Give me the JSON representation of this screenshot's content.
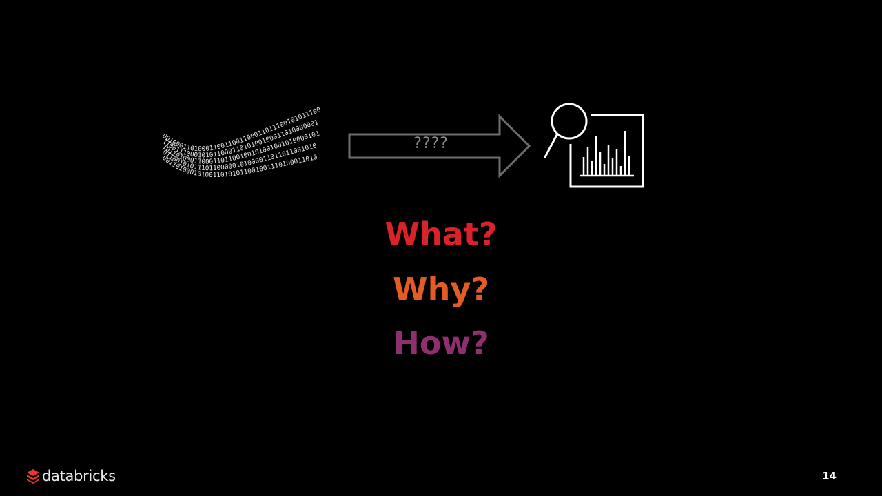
{
  "slide": {
    "background": "#000000",
    "page_number": "14"
  },
  "diagram": {
    "binary_lines": [
      "00100011010001100110011000110111001010111001101",
      "11001110001010110001101010010001101000000100000",
      "10110100011000110110010010100100101000010111",
      "01100101011101100000101000011011011001010",
      "00110100010100110101011001001110100011010"
    ],
    "arrow_label": "????",
    "analytics_icon": "magnifier-bar-chart-icon",
    "binary_icon": "binary-data-stream-icon"
  },
  "questions": {
    "what": {
      "label": "What?",
      "color": "#d8232a"
    },
    "why": {
      "label": "Why?",
      "color": "#e35b25"
    },
    "how": {
      "label": "How?",
      "color": "#8e2f6f"
    }
  },
  "brand": {
    "name": "databricks",
    "logo_icon": "databricks-stack-icon",
    "logo_color": "#e8372c"
  }
}
